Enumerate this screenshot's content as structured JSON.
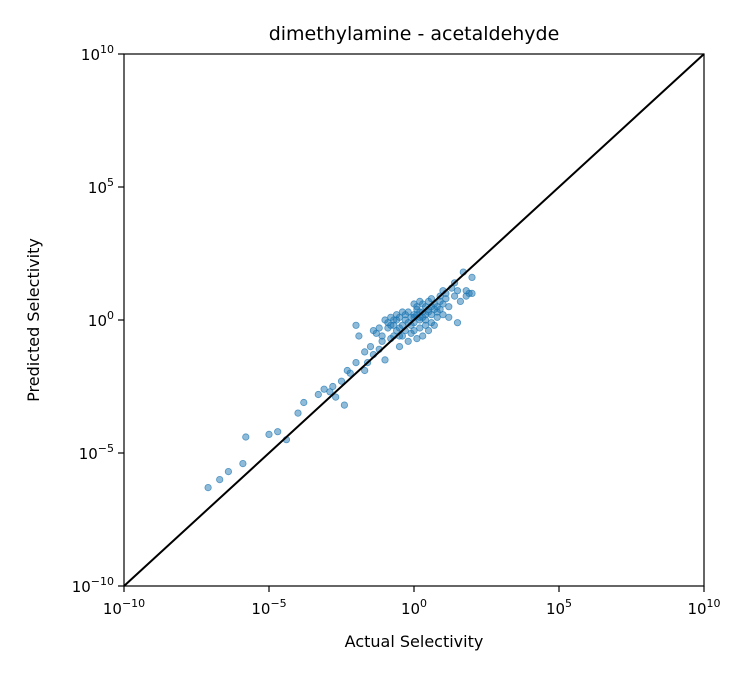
{
  "chart_data": {
    "type": "scatter",
    "title": "dimethylamine - acetaldehyde",
    "xlabel": "Actual Selectivity",
    "ylabel": "Predicted Selectivity",
    "xscale": "log",
    "yscale": "log",
    "xlim_exp": [
      -10,
      10
    ],
    "ylim_exp": [
      -10,
      10
    ],
    "xticks_exp": [
      -10,
      -5,
      0,
      5,
      10
    ],
    "yticks_exp": [
      -10,
      -5,
      0,
      5,
      10
    ],
    "tick_base": "10",
    "grid": false,
    "reference_line": {
      "from_exp": [
        -10,
        -10
      ],
      "to_exp": [
        10,
        10
      ],
      "color": "#000000"
    },
    "series": [
      {
        "color": "#1f77b4",
        "points_log10": [
          [
            -7.1,
            -6.3
          ],
          [
            -6.7,
            -6.0
          ],
          [
            -6.4,
            -5.7
          ],
          [
            -5.9,
            -5.4
          ],
          [
            -5.8,
            -4.4
          ],
          [
            -5.0,
            -4.3
          ],
          [
            -4.7,
            -4.2
          ],
          [
            -4.4,
            -4.5
          ],
          [
            -4.0,
            -3.5
          ],
          [
            -3.8,
            -3.1
          ],
          [
            -3.3,
            -2.8
          ],
          [
            -2.9,
            -2.7
          ],
          [
            -2.8,
            -2.5
          ],
          [
            -2.4,
            -3.2
          ],
          [
            -2.5,
            -2.3
          ],
          [
            -2.3,
            -1.9
          ],
          [
            -2.2,
            -2.0
          ],
          [
            -2.0,
            -1.6
          ],
          [
            -1.7,
            -1.9
          ],
          [
            -1.6,
            -1.6
          ],
          [
            -1.5,
            -1.0
          ],
          [
            -1.4,
            -1.3
          ],
          [
            -1.2,
            -1.1
          ],
          [
            -1.1,
            -0.6
          ],
          [
            -1.1,
            -0.8
          ],
          [
            -1.0,
            -1.5
          ],
          [
            -0.9,
            -0.3
          ],
          [
            -0.7,
            -0.6
          ],
          [
            -0.6,
            -0.4
          ],
          [
            -0.5,
            -1.0
          ],
          [
            -0.4,
            -0.2
          ],
          [
            -0.3,
            0.0
          ],
          [
            -0.2,
            -0.1
          ],
          [
            -0.1,
            0.1
          ],
          [
            0.0,
            0.1
          ],
          [
            0.0,
            -0.1
          ],
          [
            0.1,
            0.2
          ],
          [
            0.2,
            0.0
          ],
          [
            0.3,
            0.3
          ],
          [
            0.4,
            0.2
          ],
          [
            0.5,
            0.4
          ],
          [
            0.6,
            0.5
          ],
          [
            0.7,
            0.6
          ],
          [
            -2.0,
            -0.2
          ],
          [
            -1.9,
            -0.6
          ],
          [
            -1.4,
            -0.4
          ],
          [
            -1.3,
            -0.5
          ],
          [
            -0.8,
            -0.2
          ],
          [
            -0.6,
            0.0
          ],
          [
            -0.5,
            0.1
          ],
          [
            -0.3,
            0.2
          ],
          [
            -0.2,
            0.3
          ],
          [
            0.0,
            0.2
          ],
          [
            0.1,
            0.4
          ],
          [
            0.2,
            0.3
          ],
          [
            0.3,
            0.1
          ],
          [
            0.4,
            0.0
          ],
          [
            0.5,
            0.3
          ],
          [
            0.6,
            0.2
          ],
          [
            0.7,
            0.4
          ],
          [
            0.8,
            0.5
          ],
          [
            0.9,
            0.7
          ],
          [
            1.1,
            0.8
          ],
          [
            1.2,
            0.5
          ],
          [
            1.0,
            0.2
          ],
          [
            0.8,
            0.1
          ],
          [
            0.6,
            -0.1
          ],
          [
            0.4,
            -0.2
          ],
          [
            0.2,
            -0.3
          ],
          [
            0.0,
            -0.4
          ],
          [
            -0.1,
            -0.5
          ],
          [
            -0.3,
            -0.4
          ],
          [
            -0.5,
            -0.3
          ],
          [
            -0.7,
            -0.2
          ],
          [
            -0.9,
            -0.1
          ],
          [
            -1.0,
            0.0
          ],
          [
            -0.8,
            0.1
          ],
          [
            -0.6,
            0.2
          ],
          [
            -0.4,
            0.3
          ],
          [
            0.1,
            0.5
          ],
          [
            0.3,
            0.6
          ],
          [
            0.5,
            0.7
          ],
          [
            1.4,
            0.9
          ],
          [
            1.6,
            0.7
          ],
          [
            1.8,
            0.9
          ],
          [
            1.3,
            1.2
          ],
          [
            1.4,
            1.4
          ],
          [
            1.5,
            -0.1
          ],
          [
            1.0,
            0.6
          ],
          [
            0.9,
            0.4
          ],
          [
            1.2,
            0.1
          ],
          [
            0.7,
            -0.2
          ],
          [
            0.5,
            -0.4
          ],
          [
            0.3,
            -0.6
          ],
          [
            0.1,
            -0.7
          ],
          [
            -0.2,
            -0.8
          ],
          [
            -0.4,
            -0.6
          ],
          [
            -0.8,
            -0.7
          ],
          [
            1.7,
            1.8
          ],
          [
            1.5,
            1.1
          ],
          [
            1.9,
            1.0
          ],
          [
            1.8,
            1.1
          ],
          [
            2.0,
            1.6
          ],
          [
            2.0,
            1.0
          ],
          [
            1.1,
            1.0
          ],
          [
            -1.7,
            -1.2
          ],
          [
            -2.7,
            -2.9
          ],
          [
            -3.1,
            -2.6
          ],
          [
            0.2,
            0.7
          ],
          [
            -1.2,
            -0.3
          ],
          [
            0.6,
            0.8
          ],
          [
            0.9,
            0.9
          ],
          [
            1.0,
            1.1
          ],
          [
            0.0,
            0.6
          ],
          [
            -0.1,
            -0.2
          ],
          [
            0.2,
            0.1
          ],
          [
            0.4,
            0.5
          ],
          [
            0.8,
            0.3
          ],
          [
            -0.7,
            0.0
          ],
          [
            -0.5,
            -0.6
          ]
        ]
      }
    ]
  }
}
